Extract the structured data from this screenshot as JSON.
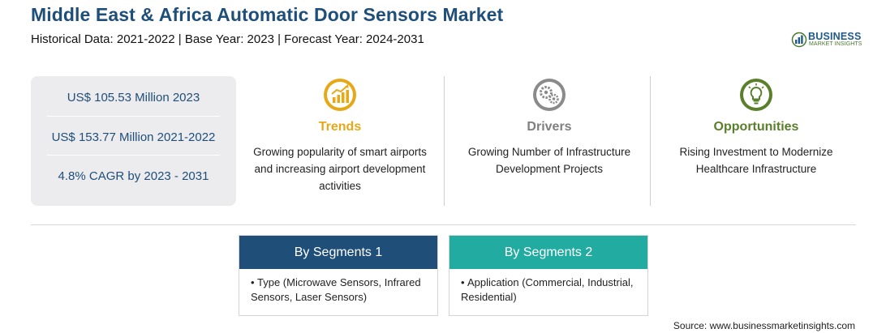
{
  "header": {
    "title": "Middle East & Africa Automatic Door Sensors Market",
    "subtitle": "Historical Data: 2021-2022 | Base Year: 2023 | Forecast Year: 2024-2031"
  },
  "logo": {
    "word": "BUSINESS",
    "sub": "MARKET INSIGHTS",
    "icon": "bar-chart-globe-icon",
    "colors": {
      "primary": "#1f5a8a",
      "secondary": "#4a7a2e"
    }
  },
  "stats": [
    {
      "text": "US$ 105.53 Million 2023"
    },
    {
      "text": "US$ 153.77 Million 2021-2022"
    },
    {
      "text": "4.8% CAGR by 2023 - 2031"
    }
  ],
  "columns": {
    "trends": {
      "icon": "growth-chart-icon",
      "heading": "Trends",
      "color": "#e6a817",
      "description": "Growing popularity of smart airports and increasing airport development activities"
    },
    "drivers": {
      "icon": "gears-icon",
      "heading": "Drivers",
      "color": "#7f7f7f",
      "description": "Growing Number of Infrastructure Development Projects"
    },
    "opportunities": {
      "icon": "lightbulb-icon",
      "heading": "Opportunities",
      "color": "#5a7f2a",
      "description": "Rising Investment to Modernize Healthcare Infrastructure"
    }
  },
  "segments": [
    {
      "title": "By Segments 1",
      "color": "#1f4e79",
      "bullet": "•",
      "item": "Type (Microwave Sensors, Infrared Sensors, Laser Sensors)"
    },
    {
      "title": "By Segments 2",
      "color": "#22aba0",
      "bullet": "•",
      "item": "Application (Commercial, Industrial, Residential)"
    }
  ],
  "footer": {
    "source": "Source: www.businessmarketinsights.com"
  }
}
